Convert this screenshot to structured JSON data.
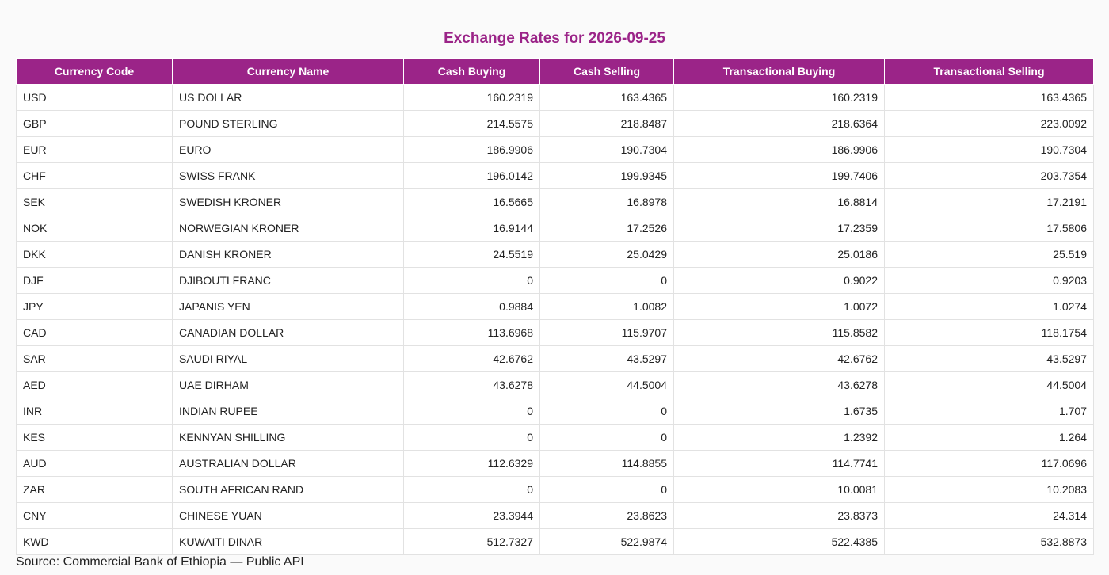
{
  "title": "Exchange Rates for 2026-09-25",
  "columns": [
    "Currency Code",
    "Currency Name",
    "Cash Buying",
    "Cash Selling",
    "Transactional Buying",
    "Transactional Selling"
  ],
  "rows": [
    {
      "code": "USD",
      "name": "US DOLLAR",
      "cash_buying": "160.2319",
      "cash_selling": "163.4365",
      "trans_buying": "160.2319",
      "trans_selling": "163.4365"
    },
    {
      "code": "GBP",
      "name": "POUND STERLING",
      "cash_buying": "214.5575",
      "cash_selling": "218.8487",
      "trans_buying": "218.6364",
      "trans_selling": "223.0092"
    },
    {
      "code": "EUR",
      "name": "EURO",
      "cash_buying": "186.9906",
      "cash_selling": "190.7304",
      "trans_buying": "186.9906",
      "trans_selling": "190.7304"
    },
    {
      "code": "CHF",
      "name": "SWISS FRANK",
      "cash_buying": "196.0142",
      "cash_selling": "199.9345",
      "trans_buying": "199.7406",
      "trans_selling": "203.7354"
    },
    {
      "code": "SEK",
      "name": "SWEDISH KRONER",
      "cash_buying": "16.5665",
      "cash_selling": "16.8978",
      "trans_buying": "16.8814",
      "trans_selling": "17.2191"
    },
    {
      "code": "NOK",
      "name": "NORWEGIAN KRONER",
      "cash_buying": "16.9144",
      "cash_selling": "17.2526",
      "trans_buying": "17.2359",
      "trans_selling": "17.5806"
    },
    {
      "code": "DKK",
      "name": "DANISH KRONER",
      "cash_buying": "24.5519",
      "cash_selling": "25.0429",
      "trans_buying": "25.0186",
      "trans_selling": "25.519"
    },
    {
      "code": "DJF",
      "name": "DJIBOUTI FRANC",
      "cash_buying": "0",
      "cash_selling": "0",
      "trans_buying": "0.9022",
      "trans_selling": "0.9203"
    },
    {
      "code": "JPY",
      "name": "JAPANIS YEN",
      "cash_buying": "0.9884",
      "cash_selling": "1.0082",
      "trans_buying": "1.0072",
      "trans_selling": "1.0274"
    },
    {
      "code": "CAD",
      "name": "CANADIAN DOLLAR",
      "cash_buying": "113.6968",
      "cash_selling": "115.9707",
      "trans_buying": "115.8582",
      "trans_selling": "118.1754"
    },
    {
      "code": "SAR",
      "name": "SAUDI RIYAL",
      "cash_buying": "42.6762",
      "cash_selling": "43.5297",
      "trans_buying": "42.6762",
      "trans_selling": "43.5297"
    },
    {
      "code": "AED",
      "name": "UAE DIRHAM",
      "cash_buying": "43.6278",
      "cash_selling": "44.5004",
      "trans_buying": "43.6278",
      "trans_selling": "44.5004"
    },
    {
      "code": "INR",
      "name": "INDIAN RUPEE",
      "cash_buying": "0",
      "cash_selling": "0",
      "trans_buying": "1.6735",
      "trans_selling": "1.707"
    },
    {
      "code": "KES",
      "name": "KENNYAN SHILLING",
      "cash_buying": "0",
      "cash_selling": "0",
      "trans_buying": "1.2392",
      "trans_selling": "1.264"
    },
    {
      "code": "AUD",
      "name": "AUSTRALIAN DOLLAR",
      "cash_buying": "112.6329",
      "cash_selling": "114.8855",
      "trans_buying": "114.7741",
      "trans_selling": "117.0696"
    },
    {
      "code": "ZAR",
      "name": "SOUTH AFRICAN RAND",
      "cash_buying": "0",
      "cash_selling": "0",
      "trans_buying": "10.0081",
      "trans_selling": "10.2083"
    },
    {
      "code": "CNY",
      "name": "CHINESE YUAN",
      "cash_buying": "23.3944",
      "cash_selling": "23.8623",
      "trans_buying": "23.8373",
      "trans_selling": "24.314"
    },
    {
      "code": "KWD",
      "name": "KUWAITI DINAR",
      "cash_buying": "512.7327",
      "cash_selling": "522.9874",
      "trans_buying": "522.4385",
      "trans_selling": "532.8873"
    }
  ],
  "source": "Source: Commercial Bank of Ethiopia — Public API",
  "colors": {
    "accent": "#9b2488",
    "header_text": "#ffffff",
    "background": "#fafafa"
  }
}
